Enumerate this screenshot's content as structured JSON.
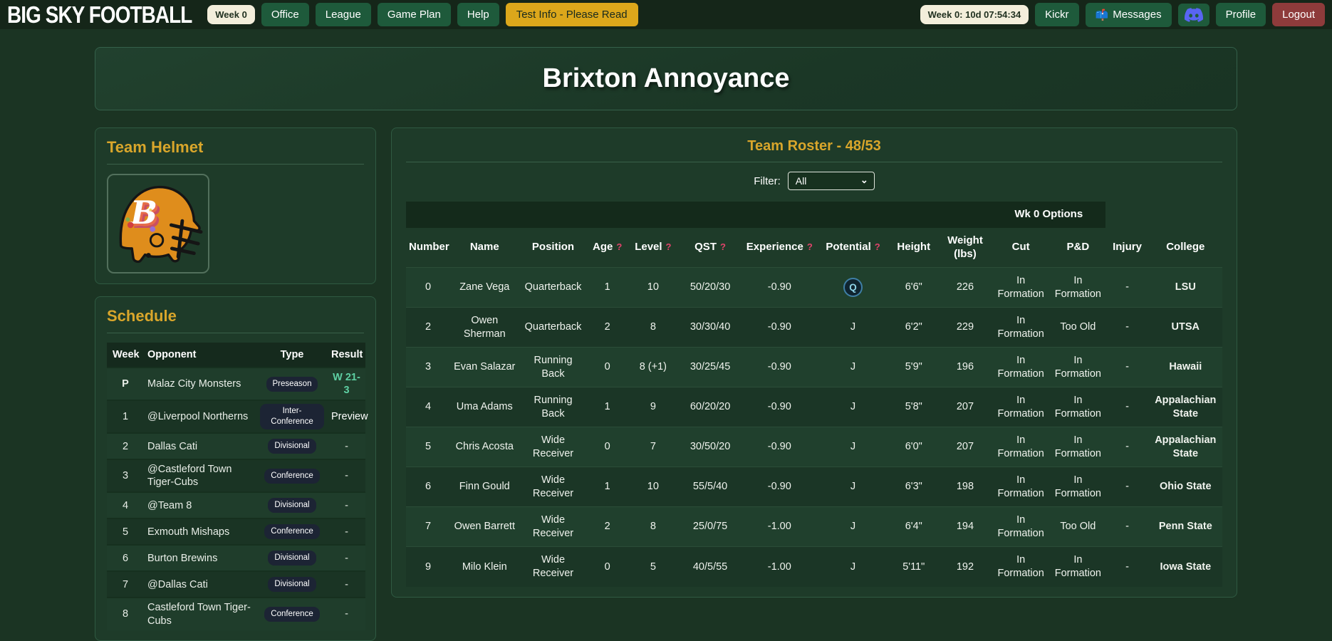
{
  "navbar": {
    "logo": "BIG SKY FOOTBALL",
    "week_badge": "Week 0",
    "nav_items": [
      "Office",
      "League",
      "Game Plan",
      "Help"
    ],
    "test_info": "Test Info - Please Read",
    "timer": "Week 0: 10d 07:54:34",
    "kickr": "Kickr",
    "messages": "Messages",
    "messages_icon": "📫",
    "profile": "Profile",
    "logout": "Logout"
  },
  "team": {
    "title": "Brixton Annoyance",
    "logo_letter": "B"
  },
  "helmet_card": {
    "title": "Team Helmet"
  },
  "schedule": {
    "title": "Schedule",
    "columns": [
      "Week",
      "Opponent",
      "Type",
      "Result"
    ],
    "rows": [
      {
        "week": "P",
        "opponent": "Malaz City Monsters",
        "type": "Preseason",
        "result": "W 21-3",
        "result_class": "res-win"
      },
      {
        "week": "1",
        "opponent": "@Liverpool Northerns",
        "type": "Inter-Conference",
        "result": "Preview",
        "result_class": "res-preview"
      },
      {
        "week": "2",
        "opponent": "Dallas Cati",
        "type": "Divisional",
        "result": "-",
        "result_class": "res-none"
      },
      {
        "week": "3",
        "opponent": "@Castleford Town Tiger-Cubs",
        "type": "Conference",
        "result": "-",
        "result_class": "res-none"
      },
      {
        "week": "4",
        "opponent": "@Team 8",
        "type": "Divisional",
        "result": "-",
        "result_class": "res-none"
      },
      {
        "week": "5",
        "opponent": "Exmouth Mishaps",
        "type": "Conference",
        "result": "-",
        "result_class": "res-none"
      },
      {
        "week": "6",
        "opponent": "Burton Brewins",
        "type": "Divisional",
        "result": "-",
        "result_class": "res-none"
      },
      {
        "week": "7",
        "opponent": "@Dallas Cati",
        "type": "Divisional",
        "result": "-",
        "result_class": "res-none"
      },
      {
        "week": "8",
        "opponent": "Castleford Town Tiger-Cubs",
        "type": "Conference",
        "result": "-",
        "result_class": "res-none"
      }
    ]
  },
  "roster": {
    "title": "Team Roster - 48/53",
    "filter_label": "Filter:",
    "filter_value": "All",
    "options_header": "Wk 0 Options",
    "columns": [
      {
        "label": "Number"
      },
      {
        "label": "Name"
      },
      {
        "label": "Position"
      },
      {
        "label": "Age",
        "help": true
      },
      {
        "label": "Level",
        "help": true
      },
      {
        "label": "QST",
        "help": true
      },
      {
        "label": "Experience",
        "help": true
      },
      {
        "label": "Potential",
        "help": true
      },
      {
        "label": "Height"
      },
      {
        "label": "Weight (lbs)"
      },
      {
        "label": "Cut"
      },
      {
        "label": "P&D"
      },
      {
        "label": "Injury"
      },
      {
        "label": "College"
      }
    ],
    "rows": [
      {
        "number": "0",
        "name": "Zane Vega",
        "position": "Quarterback",
        "age": "1",
        "level": "10",
        "qst": "50/20/30",
        "experience": "-0.90",
        "potential": "Q",
        "potential_badge": true,
        "height": "6'6\"",
        "weight": "226",
        "cut": "In Formation",
        "pd": "In Formation",
        "injury": "-",
        "college": "LSU"
      },
      {
        "number": "2",
        "name": "Owen Sherman",
        "position": "Quarterback",
        "age": "2",
        "level": "8",
        "qst": "30/30/40",
        "experience": "-0.90",
        "potential": "J",
        "potential_badge": false,
        "height": "6'2\"",
        "weight": "229",
        "cut": "In Formation",
        "pd": "Too Old",
        "injury": "-",
        "college": "UTSA"
      },
      {
        "number": "3",
        "name": "Evan Salazar",
        "position": "Running Back",
        "age": "0",
        "level": "8 (+1)",
        "qst": "30/25/45",
        "experience": "-0.90",
        "potential": "J",
        "potential_badge": false,
        "height": "5'9\"",
        "weight": "196",
        "cut": "In Formation",
        "pd": "In Formation",
        "injury": "-",
        "college": "Hawaii"
      },
      {
        "number": "4",
        "name": "Uma Adams",
        "position": "Running Back",
        "age": "1",
        "level": "9",
        "qst": "60/20/20",
        "experience": "-0.90",
        "potential": "J",
        "potential_badge": false,
        "height": "5'8\"",
        "weight": "207",
        "cut": "In Formation",
        "pd": "In Formation",
        "injury": "-",
        "college": "Appalachian State"
      },
      {
        "number": "5",
        "name": "Chris Acosta",
        "position": "Wide Receiver",
        "age": "0",
        "level": "7",
        "qst": "30/50/20",
        "experience": "-0.90",
        "potential": "J",
        "potential_badge": false,
        "height": "6'0\"",
        "weight": "207",
        "cut": "In Formation",
        "pd": "In Formation",
        "injury": "-",
        "college": "Appalachian State"
      },
      {
        "number": "6",
        "name": "Finn Gould",
        "position": "Wide Receiver",
        "age": "1",
        "level": "10",
        "qst": "55/5/40",
        "experience": "-0.90",
        "potential": "J",
        "potential_badge": false,
        "height": "6'3\"",
        "weight": "198",
        "cut": "In Formation",
        "pd": "In Formation",
        "injury": "-",
        "college": "Ohio State"
      },
      {
        "number": "7",
        "name": "Owen Barrett",
        "position": "Wide Receiver",
        "age": "2",
        "level": "8",
        "qst": "25/0/75",
        "experience": "-1.00",
        "potential": "J",
        "potential_badge": false,
        "height": "6'4\"",
        "weight": "194",
        "cut": "In Formation",
        "pd": "Too Old",
        "injury": "-",
        "college": "Penn State"
      },
      {
        "number": "9",
        "name": "Milo Klein",
        "position": "Wide Receiver",
        "age": "0",
        "level": "5",
        "qst": "40/5/55",
        "experience": "-1.00",
        "potential": "J",
        "potential_badge": false,
        "height": "5'11\"",
        "weight": "192",
        "cut": "In Formation",
        "pd": "In Formation",
        "injury": "-",
        "college": "Iowa State"
      }
    ]
  },
  "colors": {
    "accent_gold": "#d9a62b",
    "name_link": "#d4a139",
    "win_green": "#5ecfa2",
    "badge_navy": "#1c2434",
    "button_green": "#1e5a3b",
    "warning_yellow": "#dca71b",
    "logout_red": "#8e3b3b",
    "cream_pill": "#f3eedb",
    "discord_blurple": "#5865F2",
    "help_red": "#e0436a",
    "helmet_orange": "#df8d1c"
  }
}
